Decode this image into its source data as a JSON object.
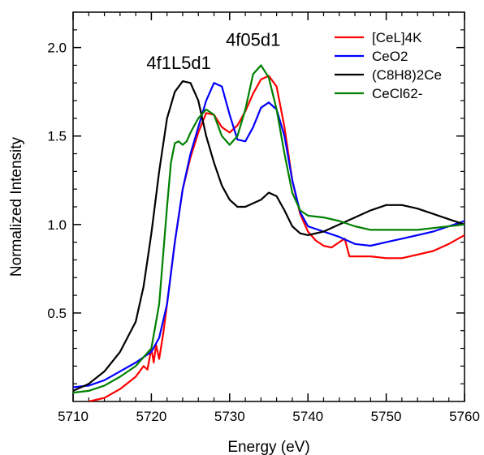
{
  "chart_data": {
    "type": "line",
    "xlabel": "Energy (eV)",
    "ylabel": "Normalized Intensity",
    "xlim": [
      5710,
      5760
    ],
    "ylim": [
      0.0,
      2.2
    ],
    "xticks": [
      5710,
      5720,
      5730,
      5740,
      5750,
      5760
    ],
    "xtick_labels": [
      "5710",
      "5720",
      "5730",
      "5740",
      "5750",
      "5760"
    ],
    "yticks": [
      0.5,
      1.0,
      1.5,
      2.0
    ],
    "ytick_labels": [
      "0.5",
      "1.0",
      "1.5",
      "2.0"
    ],
    "grid": false,
    "legend_position": "top-right",
    "legend": [
      {
        "label": "[CeL]4K",
        "color": "#ff0000"
      },
      {
        "label": "CeO2",
        "color": "#0000ff"
      },
      {
        "label": "(C8H8)2Ce",
        "color": "#000000"
      },
      {
        "label": "CeCl62-",
        "color": "#008000"
      }
    ],
    "annotations": [
      {
        "text": "4f1L5d1",
        "x": 5723.5,
        "y": 1.88
      },
      {
        "text": "4f05d1",
        "x": 5733.0,
        "y": 2.01
      }
    ],
    "series": [
      {
        "name": "[CeL]4K",
        "color": "#ff0000",
        "x": [
          5712,
          5714,
          5716,
          5718,
          5719,
          5719.5,
          5720,
          5720.3,
          5720.6,
          5721,
          5721.5,
          5722,
          5723,
          5724,
          5725,
          5726,
          5727,
          5728,
          5729,
          5730,
          5731,
          5732,
          5733,
          5734,
          5735,
          5736,
          5737,
          5738,
          5739,
          5740,
          5741,
          5742,
          5743,
          5744,
          5744.7,
          5745.3,
          5746,
          5748,
          5750,
          5752,
          5754,
          5756,
          5758,
          5760
        ],
        "y": [
          0.0,
          0.02,
          0.07,
          0.14,
          0.2,
          0.18,
          0.3,
          0.22,
          0.32,
          0.24,
          0.38,
          0.55,
          0.9,
          1.2,
          1.38,
          1.52,
          1.63,
          1.62,
          1.55,
          1.52,
          1.56,
          1.64,
          1.74,
          1.82,
          1.84,
          1.78,
          1.55,
          1.25,
          1.06,
          0.96,
          0.91,
          0.88,
          0.87,
          0.9,
          0.92,
          0.82,
          0.82,
          0.82,
          0.81,
          0.81,
          0.83,
          0.85,
          0.89,
          0.94
        ]
      },
      {
        "name": "CeO2",
        "color": "#0000ff",
        "x": [
          5710,
          5712,
          5714,
          5716,
          5718,
          5720,
          5721,
          5722,
          5723,
          5724,
          5725,
          5726,
          5727,
          5728,
          5729,
          5730,
          5731,
          5732,
          5733,
          5734,
          5735,
          5736,
          5737,
          5738,
          5739,
          5740,
          5742,
          5744,
          5746,
          5748,
          5750,
          5752,
          5754,
          5756,
          5758,
          5760
        ],
        "y": [
          0.08,
          0.09,
          0.12,
          0.17,
          0.22,
          0.28,
          0.36,
          0.55,
          0.9,
          1.2,
          1.4,
          1.55,
          1.7,
          1.8,
          1.78,
          1.62,
          1.48,
          1.47,
          1.55,
          1.66,
          1.69,
          1.65,
          1.5,
          1.25,
          1.07,
          0.99,
          0.96,
          0.93,
          0.89,
          0.88,
          0.9,
          0.92,
          0.94,
          0.96,
          0.99,
          1.02
        ]
      },
      {
        "name": "(C8H8)2Ce",
        "color": "#000000",
        "x": [
          5710,
          5712,
          5714,
          5716,
          5718,
          5719,
          5720,
          5721,
          5722,
          5723,
          5724,
          5725,
          5726,
          5727,
          5728,
          5729,
          5730,
          5731,
          5732,
          5733,
          5734,
          5735,
          5736,
          5737,
          5738,
          5739,
          5740,
          5742,
          5744,
          5746,
          5748,
          5750,
          5752,
          5754,
          5756,
          5758,
          5760
        ],
        "y": [
          0.06,
          0.1,
          0.17,
          0.28,
          0.45,
          0.65,
          0.95,
          1.3,
          1.6,
          1.75,
          1.81,
          1.8,
          1.7,
          1.5,
          1.35,
          1.22,
          1.14,
          1.1,
          1.1,
          1.12,
          1.14,
          1.18,
          1.16,
          1.08,
          0.99,
          0.95,
          0.94,
          0.96,
          1.0,
          1.04,
          1.08,
          1.11,
          1.11,
          1.09,
          1.06,
          1.03,
          1.0
        ]
      },
      {
        "name": "CeCl62-",
        "color": "#008000",
        "x": [
          5710,
          5712,
          5714,
          5716,
          5718,
          5720,
          5721,
          5722,
          5722.5,
          5723,
          5723.5,
          5724,
          5724.5,
          5725,
          5726,
          5727,
          5728,
          5729,
          5730,
          5731,
          5732,
          5733,
          5734,
          5735,
          5736,
          5737,
          5738,
          5739,
          5740,
          5742,
          5744,
          5746,
          5748,
          5750,
          5752,
          5754,
          5756,
          5758,
          5760
        ],
        "y": [
          0.05,
          0.06,
          0.09,
          0.14,
          0.2,
          0.3,
          0.55,
          1.1,
          1.35,
          1.46,
          1.47,
          1.45,
          1.47,
          1.52,
          1.6,
          1.65,
          1.62,
          1.5,
          1.45,
          1.5,
          1.65,
          1.85,
          1.9,
          1.83,
          1.65,
          1.4,
          1.18,
          1.08,
          1.05,
          1.04,
          1.02,
          0.99,
          0.97,
          0.97,
          0.97,
          0.97,
          0.98,
          0.99,
          1.0
        ]
      }
    ]
  }
}
